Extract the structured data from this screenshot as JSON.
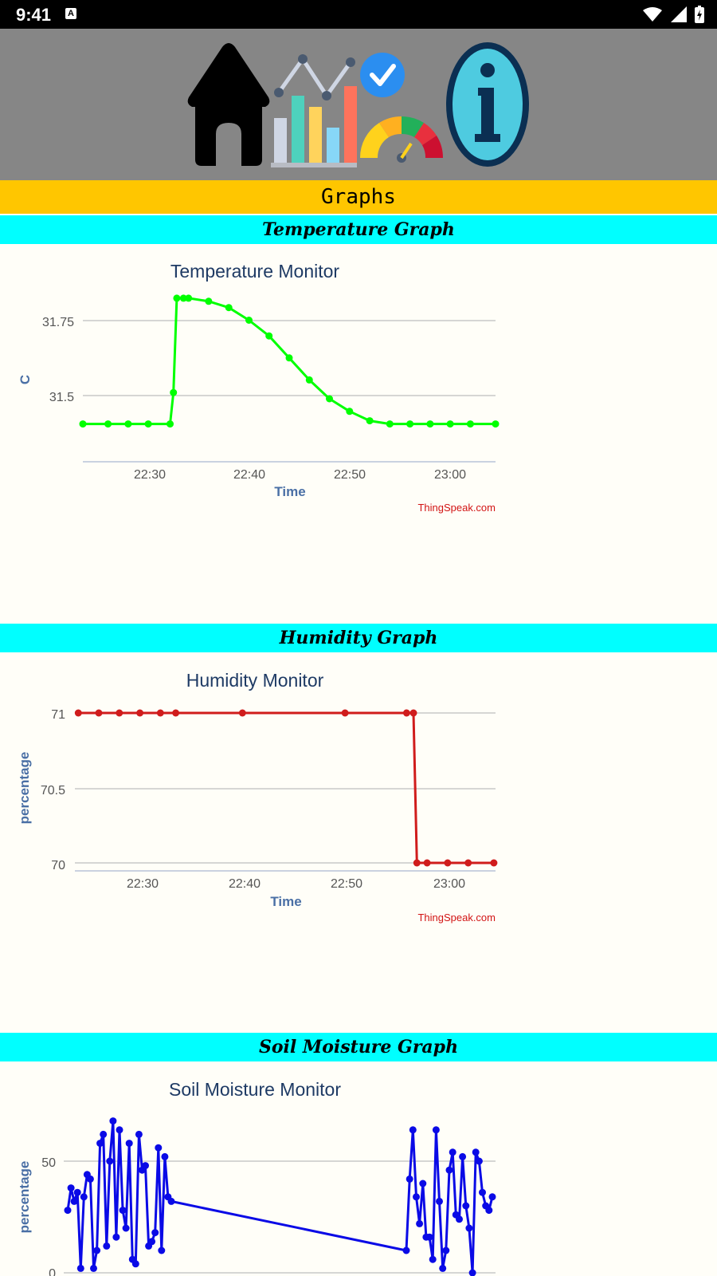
{
  "status_bar": {
    "time": "9:41",
    "notification_icon": "a-icon",
    "right_icons": [
      "wifi-icon",
      "cellular-signal-icon",
      "battery-charging-icon"
    ]
  },
  "toolbar": {
    "buttons": [
      {
        "name": "home-icon"
      },
      {
        "name": "graphs-icon"
      },
      {
        "name": "status-gauge-icon"
      },
      {
        "name": "info-icon"
      }
    ]
  },
  "page_title": "Graphs",
  "sections": {
    "temperature": {
      "heading": "Temperature Graph",
      "chart_title": "Temperature Monitor",
      "ylabel": "C",
      "xlabel": "Time",
      "credit": "ThingSpeak.com",
      "y_ticks": [
        "31.75",
        "31.5"
      ],
      "x_ticks": [
        "22:30",
        "22:40",
        "22:50",
        "23:00"
      ]
    },
    "humidity": {
      "heading": "Humidity Graph",
      "chart_title": "Humidity Monitor",
      "ylabel": "percentage",
      "xlabel": "Time",
      "credit": "ThingSpeak.com",
      "y_ticks": [
        "71",
        "70.5",
        "70"
      ],
      "x_ticks": [
        "22:30",
        "22:40",
        "22:50",
        "23:00"
      ]
    },
    "soil": {
      "heading": "Soil Moisture Graph",
      "chart_title": "Soil Moisture Monitor",
      "ylabel": "percentage",
      "y_ticks": [
        "50",
        "0"
      ]
    }
  },
  "colors": {
    "toolbar_bg": "#868686",
    "header_bg": "#ffc600",
    "section_bg": "#00ffff",
    "temperature_series": "#00ff00",
    "humidity_series": "#d01c1c",
    "soil_series": "#0a0ae6",
    "credit": "#d21414"
  },
  "chart_data": [
    {
      "type": "line",
      "title": "Temperature Monitor",
      "xlabel": "Time",
      "ylabel": "C",
      "x_ticks": [
        "22:30",
        "22:40",
        "22:50",
        "23:00"
      ],
      "xlim": [
        "22:23:30",
        "23:04:30"
      ],
      "ylim": [
        31.3,
        31.82
      ],
      "series": [
        {
          "points": [
            [
              "22:23:30",
              31.4
            ],
            [
              "22:26:00",
              31.4
            ],
            [
              "22:28:00",
              31.4
            ],
            [
              "22:30:00",
              31.4
            ],
            [
              "22:32:10",
              31.4
            ],
            [
              "22:32:30",
              31.5
            ],
            [
              "22:32:50",
              31.8
            ],
            [
              "22:33:30",
              31.8
            ],
            [
              "22:34:00",
              31.8
            ],
            [
              "22:36:00",
              31.79
            ],
            [
              "22:38:00",
              31.77
            ],
            [
              "22:40:00",
              31.73
            ],
            [
              "22:42:00",
              31.68
            ],
            [
              "22:44:00",
              31.61
            ],
            [
              "22:46:00",
              31.54
            ],
            [
              "22:48:00",
              31.48
            ],
            [
              "22:50:00",
              31.44
            ],
            [
              "22:52:00",
              31.41
            ],
            [
              "22:54:00",
              31.4
            ],
            [
              "22:56:00",
              31.4
            ],
            [
              "22:58:00",
              31.4
            ],
            [
              "23:00:00",
              31.4
            ],
            [
              "23:02:00",
              31.4
            ],
            [
              "23:04:30",
              31.4
            ]
          ]
        }
      ]
    },
    {
      "type": "line",
      "title": "Humidity Monitor",
      "xlabel": "Time",
      "ylabel": "percentage",
      "x_ticks": [
        "22:30",
        "22:40",
        "22:50",
        "23:00"
      ],
      "xlim": [
        "22:23:40",
        "23:04:40"
      ],
      "ylim": [
        69.95,
        71.0
      ],
      "series": [
        {
          "points": [
            [
              "22:24:00",
              71
            ],
            [
              "22:26:00",
              71
            ],
            [
              "22:28:00",
              71
            ],
            [
              "22:30:00",
              71
            ],
            [
              "22:32:00",
              71
            ],
            [
              "22:33:30",
              71
            ],
            [
              "22:40:00",
              71
            ],
            [
              "22:50:00",
              71
            ],
            [
              "22:56:00",
              71
            ],
            [
              "22:56:40",
              71
            ],
            [
              "22:57:00",
              70
            ],
            [
              "22:58:00",
              70
            ],
            [
              "23:00:00",
              70
            ],
            [
              "23:02:00",
              70
            ],
            [
              "23:04:30",
              70
            ]
          ]
        }
      ]
    },
    {
      "type": "line",
      "title": "Soil Moisture Monitor",
      "ylabel": "percentage",
      "ylim": [
        0,
        72
      ],
      "series": [
        {
          "values": [
            28,
            38,
            32,
            36,
            2,
            34,
            44,
            42,
            2,
            10,
            58,
            62,
            12,
            50,
            68,
            16,
            64,
            28,
            20,
            58,
            6,
            4,
            62,
            46,
            48,
            12,
            14,
            18,
            56,
            10,
            52,
            34,
            32,
            10,
            42,
            64,
            34,
            22,
            40,
            16,
            16,
            6,
            64,
            32,
            2,
            10,
            46,
            54,
            26,
            24,
            52,
            30,
            20,
            0,
            54,
            50,
            36,
            30,
            28,
            34
          ]
        }
      ]
    }
  ]
}
